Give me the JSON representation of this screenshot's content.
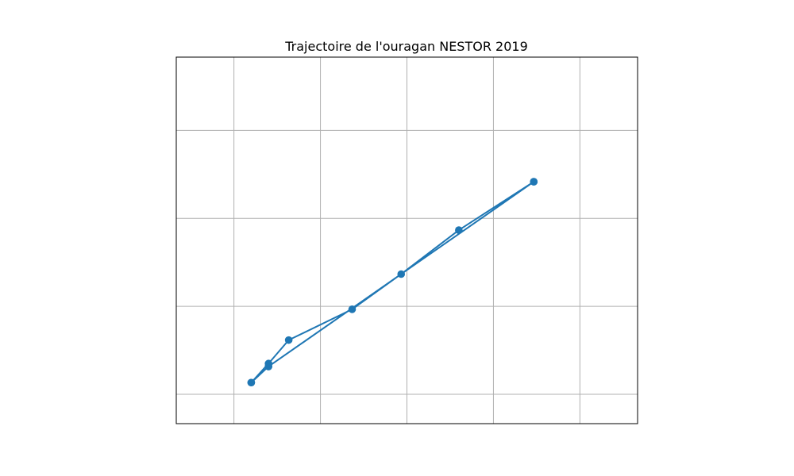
{
  "chart_data": {
    "type": "line",
    "title": "Trajectoire de l'ouragan NESTOR 2019",
    "xlabel": "",
    "ylabel": "",
    "grid": true,
    "show_ticks": false,
    "xlim": [
      -91.0,
      -75.0
    ],
    "ylim": [
      19.0,
      31.5
    ],
    "gridlines_x": [
      -89,
      -86,
      -83,
      -80,
      -77
    ],
    "gridlines_y": [
      20,
      23,
      26,
      29
    ],
    "color": "#1f77b4",
    "series": [
      {
        "x": [
          -78.6,
          -81.2,
          -83.2,
          -84.9,
          -87.1,
          -87.8,
          -88.4,
          -87.8,
          -88.4,
          -87.8,
          -78.6
        ],
        "y": [
          27.25,
          25.6,
          24.1,
          22.9,
          21.85,
          21.05,
          20.4,
          20.95,
          20.4,
          20.95,
          27.25
        ]
      }
    ]
  }
}
